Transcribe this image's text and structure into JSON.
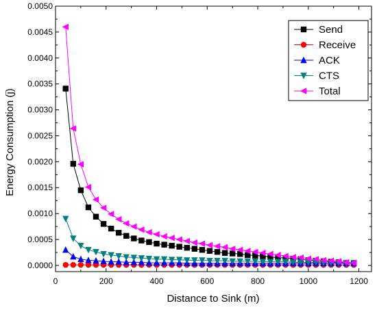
{
  "chart_data": {
    "type": "line",
    "xlabel": "Distance to Sink (m)",
    "ylabel": "Energy Consumption (j)",
    "xlim": [
      0,
      1250
    ],
    "ylim": [
      -0.00012,
      0.005
    ],
    "x_ticks": [
      0,
      200,
      400,
      600,
      800,
      1000,
      1200
    ],
    "y_ticks": [
      0.0,
      0.0005,
      0.001,
      0.0015,
      0.002,
      0.0025,
      0.003,
      0.0035,
      0.004,
      0.0045,
      0.005
    ],
    "x_tick_labels": [
      "0",
      "200",
      "400",
      "600",
      "800",
      "1000",
      "1200"
    ],
    "y_tick_labels": [
      "0.0000",
      "0.0005",
      "0.0010",
      "0.0015",
      "0.0020",
      "0.0025",
      "0.0030",
      "0.0035",
      "0.0040",
      "0.0045",
      "0.0050"
    ],
    "grid": false,
    "legend_position": "top-right",
    "x": [
      40,
      70,
      100,
      130,
      160,
      190,
      220,
      250,
      280,
      310,
      340,
      370,
      400,
      430,
      460,
      490,
      520,
      550,
      580,
      610,
      640,
      670,
      700,
      730,
      760,
      790,
      820,
      850,
      880,
      910,
      940,
      970,
      1000,
      1030,
      1060,
      1090,
      1120,
      1150,
      1180
    ],
    "series": [
      {
        "name": "Send",
        "color": "#000000",
        "marker": "square",
        "values": [
          0.00341,
          0.00196,
          0.00145,
          0.00112,
          0.00094,
          0.0008,
          0.00071,
          0.00063,
          0.00057,
          0.00052,
          0.00048,
          0.00045,
          0.00042,
          0.0004,
          0.00038,
          0.00036,
          0.00034,
          0.00032,
          0.0003,
          0.00028,
          0.00026,
          0.00024,
          0.00023,
          0.00022,
          0.0002,
          0.00019,
          0.00018,
          0.00016,
          0.00015,
          0.00014,
          0.00013,
          0.00012,
          0.0001,
          9e-05,
          8e-05,
          7e-05,
          6e-05,
          5e-05,
          4e-05
        ]
      },
      {
        "name": "Receive",
        "color": "#ff0000",
        "marker": "circle",
        "values": [
          1e-05,
          1e-05,
          1e-05,
          1e-05,
          1e-05,
          1e-05,
          1e-05,
          1e-05,
          1e-05,
          1e-05,
          1e-05,
          1e-05,
          1e-05,
          1e-05,
          1e-05,
          1e-05,
          1e-05,
          1e-05,
          1e-05,
          1e-05,
          1e-05,
          1e-05,
          1e-05,
          1e-05,
          1e-05,
          1e-05,
          1e-05,
          1e-05,
          1e-05,
          1e-05,
          1e-05,
          1e-05,
          1e-05,
          1e-05,
          1e-05,
          1e-05,
          1e-05,
          1e-05,
          1e-05
        ]
      },
      {
        "name": "ACK",
        "color": "#0000ff",
        "marker": "triangle-up",
        "values": [
          0.0003,
          0.00017,
          0.00012,
          0.0001,
          9e-05,
          8e-05,
          7e-05,
          7e-05,
          6e-05,
          6e-05,
          6e-05,
          5e-05,
          5e-05,
          5e-05,
          5e-05,
          5e-05,
          4e-05,
          4e-05,
          4e-05,
          4e-05,
          4e-05,
          4e-05,
          4e-05,
          4e-05,
          4e-05,
          4e-05,
          4e-05,
          4e-05,
          4e-05,
          4e-05,
          4e-05,
          4e-05,
          4e-05,
          4e-05,
          4e-05,
          4e-05,
          4e-05,
          4e-05,
          4e-05
        ]
      },
      {
        "name": "CTS",
        "color": "#008080",
        "marker": "triangle-down",
        "values": [
          0.0009,
          0.00052,
          0.00038,
          0.0003,
          0.00026,
          0.00022,
          0.0002,
          0.00018,
          0.00016,
          0.00015,
          0.00014,
          0.00013,
          0.00012,
          0.00012,
          0.00011,
          0.00011,
          0.0001,
          0.0001,
          0.0001,
          9e-05,
          9e-05,
          9e-05,
          8e-05,
          8e-05,
          8e-05,
          8e-05,
          7e-05,
          7e-05,
          7e-05,
          7e-05,
          6e-05,
          6e-05,
          6e-05,
          6e-05,
          5e-05,
          5e-05,
          5e-05,
          5e-05,
          5e-05
        ]
      },
      {
        "name": "Total",
        "color": "#ff00ff",
        "marker": "triangle-left",
        "values": [
          0.0046,
          0.00264,
          0.00195,
          0.00151,
          0.00127,
          0.00111,
          0.00099,
          0.00089,
          0.00081,
          0.00075,
          0.00069,
          0.00064,
          0.0006,
          0.00056,
          0.00053,
          0.0005,
          0.00047,
          0.00044,
          0.00042,
          0.00039,
          0.00037,
          0.00035,
          0.00032,
          0.0003,
          0.00028,
          0.00026,
          0.00024,
          0.00022,
          0.0002,
          0.00018,
          0.00016,
          0.00015,
          0.00013,
          0.00012,
          0.0001,
          9e-05,
          8e-05,
          6e-05,
          5e-05
        ]
      }
    ]
  }
}
